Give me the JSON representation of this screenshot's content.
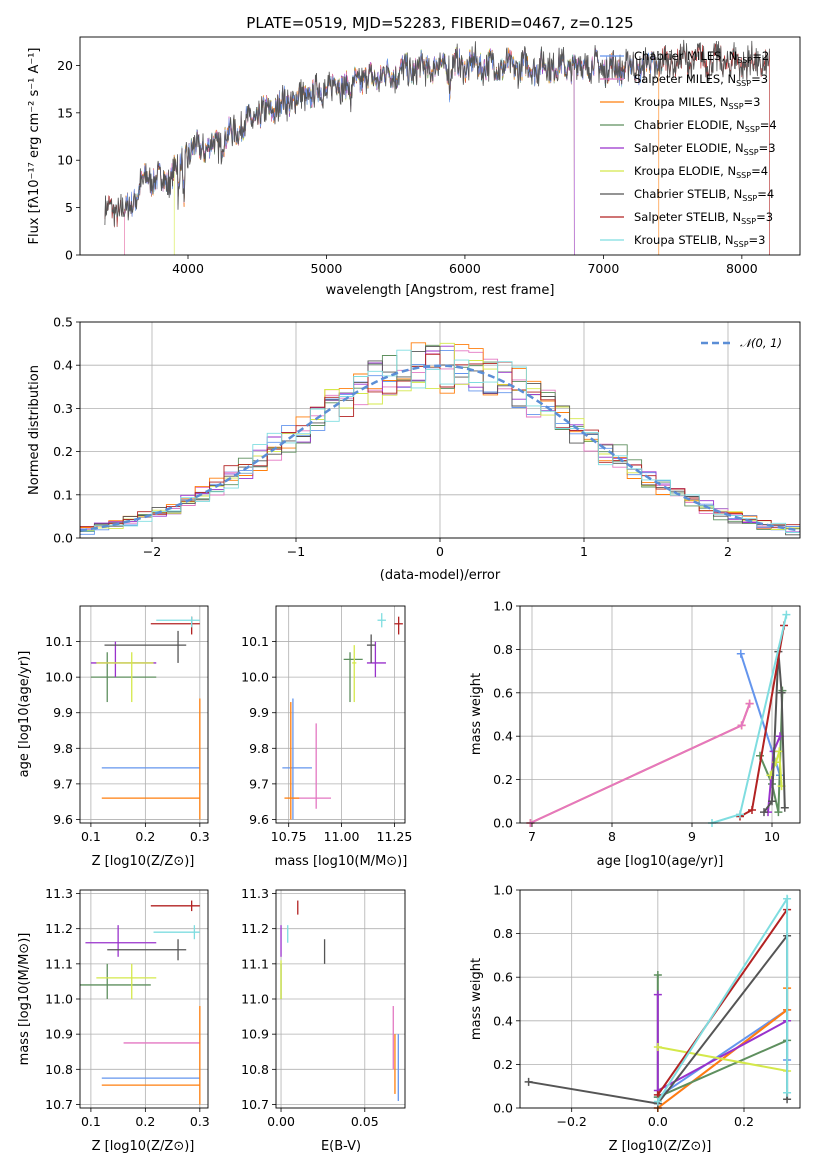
{
  "chart_data": [
    {
      "id": "spectrum",
      "type": "line",
      "title": "PLATE=0519, MJD=52283, FIBERID=0467, z=0.125",
      "xlabel": "wavelength [Angstrom, rest frame]",
      "ylabel": "Flux [fλ10⁻¹⁷ erg cm⁻² s⁻¹ A⁻¹]",
      "xlim": [
        3220,
        8420
      ],
      "ylim": [
        0,
        23
      ],
      "xticks": [
        4000,
        5000,
        6000,
        7000,
        8000
      ],
      "yticks": [
        0,
        5,
        10,
        15,
        20
      ],
      "grid": false,
      "legend_position": "top-right",
      "continuum": {
        "x": [
          3400,
          3550,
          3700,
          3850,
          3950,
          4050,
          4200,
          4350,
          4500,
          4700,
          4900,
          5100,
          5300,
          5500,
          5700,
          5900,
          6100,
          6300,
          6500,
          6700,
          6900,
          7100,
          7300,
          7500,
          7700,
          7900,
          8100,
          8200
        ],
        "y": [
          4.8,
          4.6,
          8.2,
          7.8,
          10.2,
          11.2,
          11.6,
          13.2,
          14.6,
          16.1,
          17.0,
          18.1,
          18.6,
          19.3,
          19.7,
          20.0,
          20.1,
          19.8,
          19.8,
          19.9,
          20.0,
          19.7,
          19.9,
          20.4,
          20.6,
          20.3,
          20.2,
          20.0
        ]
      },
      "series": [
        {
          "name": "Chabrier MILES, N_SSP=2",
          "legend": "Chabrier MILES, N",
          "legend_sub": "SSP",
          "legend_tail": "=2",
          "color": "#6495ed"
        },
        {
          "name": "Salpeter MILES, N_SSP=3",
          "legend": "Salpeter MILES, N",
          "legend_sub": "SSP",
          "legend_tail": "=3",
          "color": "#e377c2"
        },
        {
          "name": "Kroupa MILES, N_SSP=3",
          "legend": "Kroupa MILES, N",
          "legend_sub": "SSP",
          "legend_tail": "=3",
          "color": "#ff7f0e"
        },
        {
          "name": "Chabrier ELODIE, N_SSP=4",
          "legend": "Chabrier ELODIE, N",
          "legend_sub": "SSP",
          "legend_tail": "=4",
          "color": "#5e8f5e"
        },
        {
          "name": "Salpeter ELODIE, N_SSP=3",
          "legend": "Salpeter ELODIE, N",
          "legend_sub": "SSP",
          "legend_tail": "=3",
          "color": "#9932cc"
        },
        {
          "name": "Kroupa ELODIE, N_SSP=4",
          "legend": "Kroupa ELODIE, N",
          "legend_sub": "SSP",
          "legend_tail": "=4",
          "color": "#d4e84a"
        },
        {
          "name": "Chabrier STELIB, N_SSP=4",
          "legend": "Chabrier STELIB, N",
          "legend_sub": "SSP",
          "legend_tail": "=4",
          "color": "#555555"
        },
        {
          "name": "Salpeter STELIB, N_SSP=3",
          "legend": "Salpeter STELIB, N",
          "legend_sub": "SSP",
          "legend_tail": "=3",
          "color": "#b22222"
        },
        {
          "name": "Kroupa STELIB, N_SSP=3",
          "legend": "Kroupa STELIB, N",
          "legend_sub": "SSP",
          "legend_tail": "=3",
          "color": "#7fdde0"
        }
      ]
    },
    {
      "id": "residuals",
      "type": "line",
      "xlabel": "(data-model)/error",
      "ylabel": "Normed distribution",
      "xlim": [
        -2.5,
        2.5
      ],
      "ylim": [
        0,
        0.5
      ],
      "xticks": [
        -2,
        -1,
        0,
        1,
        2
      ],
      "yticks": [
        0.0,
        0.1,
        0.2,
        0.3,
        0.4,
        0.5
      ],
      "grid": true,
      "legend_position": "top-right",
      "legend_label": "𝒩(0, 1)",
      "gaussian_color": "#5b8ed6",
      "bin_width": 0.1
    },
    {
      "id": "age-vs-Z",
      "type": "scatter",
      "xlabel": "Z [log10(Z/Z⊙)]",
      "ylabel": "age  [log10(age/yr)]",
      "xlim": [
        0.08,
        0.315
      ],
      "ylim": [
        9.59,
        10.2
      ],
      "xticks": [
        0.1,
        0.2,
        0.3
      ],
      "yticks": [
        9.6,
        9.7,
        9.8,
        9.9,
        10.0,
        10.1
      ],
      "points": [
        {
          "model": "Chabrier MILES",
          "x": 0.3,
          "xlo": 0.12,
          "xhi": 0.3,
          "y": 9.745,
          "ylo": 9.745,
          "yhi": 9.745
        },
        {
          "model": "Salpeter MILES",
          "x": 0.3,
          "xlo": 0.3,
          "xhi": 0.3,
          "y": 9.66,
          "ylo": 9.66,
          "yhi": 9.66
        },
        {
          "model": "Kroupa MILES",
          "x": 0.3,
          "xlo": 0.12,
          "xhi": 0.3,
          "y": 9.66,
          "ylo": 9.6,
          "yhi": 9.94
        },
        {
          "model": "Chabrier ELODIE",
          "x": 0.13,
          "xlo": 0.1,
          "xhi": 0.22,
          "y": 10.0,
          "ylo": 9.93,
          "yhi": 10.07
        },
        {
          "model": "Salpeter ELODIE",
          "x": 0.145,
          "xlo": 0.1,
          "xhi": 0.22,
          "y": 10.04,
          "ylo": 10.0,
          "yhi": 10.1
        },
        {
          "model": "Kroupa ELODIE",
          "x": 0.175,
          "xlo": 0.11,
          "xhi": 0.215,
          "y": 10.04,
          "ylo": 9.93,
          "yhi": 10.07
        },
        {
          "model": "Chabrier STELIB",
          "x": 0.26,
          "xlo": 0.125,
          "xhi": 0.275,
          "y": 10.09,
          "ylo": 10.04,
          "yhi": 10.13
        },
        {
          "model": "Salpeter STELIB",
          "x": 0.285,
          "xlo": 0.21,
          "xhi": 0.3,
          "y": 10.15,
          "ylo": 10.12,
          "yhi": 10.17
        },
        {
          "model": "Kroupa STELIB",
          "x": 0.285,
          "xlo": 0.22,
          "xhi": 0.3,
          "y": 10.16,
          "ylo": 10.14,
          "yhi": 10.17
        }
      ]
    },
    {
      "id": "age-vs-mass",
      "type": "scatter",
      "xlabel": "mass [log10(M/M⊙)]",
      "ylabel": "",
      "xlim": [
        10.69,
        11.3
      ],
      "ylim": [
        9.59,
        10.2
      ],
      "xticks": [
        10.75,
        11.0,
        11.25
      ],
      "yticks": [
        9.6,
        9.7,
        9.8,
        9.9,
        10.0,
        10.1
      ],
      "points": [
        {
          "model": "Chabrier MILES",
          "x": 10.77,
          "xlo": 10.72,
          "xhi": 10.86,
          "y": 9.745,
          "ylo": 9.6,
          "yhi": 9.94
        },
        {
          "model": "Salpeter MILES",
          "x": 10.88,
          "xlo": 10.77,
          "xhi": 10.95,
          "y": 9.66,
          "ylo": 9.63,
          "yhi": 9.87
        },
        {
          "model": "Kroupa MILES",
          "x": 10.76,
          "xlo": 10.73,
          "xhi": 10.8,
          "y": 9.66,
          "ylo": 9.6,
          "yhi": 9.93
        },
        {
          "model": "Chabrier ELODIE",
          "x": 11.04,
          "xlo": 11.01,
          "xhi": 11.1,
          "y": 10.05,
          "ylo": 9.93,
          "yhi": 10.07
        },
        {
          "model": "Salpeter ELODIE",
          "x": 11.16,
          "xlo": 11.12,
          "xhi": 11.21,
          "y": 10.04,
          "ylo": 10.0,
          "yhi": 10.1
        },
        {
          "model": "Kroupa ELODIE",
          "x": 11.06,
          "xlo": 11.05,
          "xhi": 11.07,
          "y": 10.04,
          "ylo": 9.93,
          "yhi": 10.09
        },
        {
          "model": "Chabrier STELIB",
          "x": 11.14,
          "xlo": 11.12,
          "xhi": 11.16,
          "y": 10.09,
          "ylo": 10.04,
          "yhi": 10.12
        },
        {
          "model": "Salpeter STELIB",
          "x": 11.27,
          "xlo": 11.25,
          "xhi": 11.29,
          "y": 10.15,
          "ylo": 10.12,
          "yhi": 10.17
        },
        {
          "model": "Kroupa STELIB",
          "x": 11.19,
          "xlo": 11.17,
          "xhi": 11.21,
          "y": 10.16,
          "ylo": 10.14,
          "yhi": 10.18
        }
      ]
    },
    {
      "id": "massweight-vs-age",
      "type": "line",
      "xlabel": "age  [log10(age/yr)]",
      "ylabel": "mass weight",
      "xlim": [
        6.85,
        10.35
      ],
      "ylim": [
        0,
        1
      ],
      "xticks": [
        7,
        8,
        9,
        10
      ],
      "yticks": [
        0.0,
        0.2,
        0.4,
        0.6,
        0.8,
        1.0
      ],
      "grid": true,
      "series": [
        {
          "model": "Chabrier MILES",
          "x": [
            9.61,
            10.1
          ],
          "y": [
            0.78,
            0.22
          ]
        },
        {
          "model": "Kroupa MILES",
          "x": [
            6.98,
            9.62,
            9.72
          ],
          "y": [
            0.0,
            0.45,
            0.55
          ]
        },
        {
          "model": "Salpeter MILES",
          "x": [
            6.98,
            9.62,
            9.72
          ],
          "y": [
            0.0,
            0.45,
            0.55
          ]
        },
        {
          "model": "Chabrier ELODIE",
          "x": [
            9.85,
            10.0,
            10.08,
            10.13
          ],
          "y": [
            0.31,
            0.18,
            0.05,
            0.61
          ]
        },
        {
          "model": "Salpeter ELODIE",
          "x": [
            9.95,
            10.02,
            10.1
          ],
          "y": [
            0.05,
            0.33,
            0.4
          ]
        },
        {
          "model": "Kroupa ELODIE",
          "x": [
            9.98,
            10.05,
            10.09,
            10.12
          ],
          "y": [
            0.22,
            0.28,
            0.33,
            0.17
          ]
        },
        {
          "model": "Chabrier STELIB",
          "x": [
            9.9,
            10.0,
            10.08,
            10.12,
            10.16
          ],
          "y": [
            0.05,
            0.1,
            0.79,
            0.6,
            0.07
          ]
        },
        {
          "model": "Salpeter STELIB",
          "x": [
            9.6,
            9.75,
            10.15
          ],
          "y": [
            0.03,
            0.06,
            0.91
          ]
        },
        {
          "model": "Kroupa STELIB",
          "x": [
            9.25,
            9.6,
            10.18
          ],
          "y": [
            0.0,
            0.04,
            0.96
          ]
        }
      ]
    },
    {
      "id": "mass-vs-Z",
      "type": "scatter",
      "xlabel": "Z [log10(Z/Z⊙)]",
      "ylabel": "mass [log10(M/M⊙)]",
      "xlim": [
        0.08,
        0.315
      ],
      "ylim": [
        10.69,
        11.31
      ],
      "xticks": [
        0.1,
        0.2,
        0.3
      ],
      "yticks": [
        10.7,
        10.8,
        10.9,
        11.0,
        11.1,
        11.2,
        11.3
      ],
      "points": [
        {
          "model": "Chabrier MILES",
          "x": 0.3,
          "xlo": 0.12,
          "xhi": 0.3,
          "y": 10.775,
          "ylo": 10.775,
          "yhi": 10.775
        },
        {
          "model": "Salpeter MILES",
          "x": 0.3,
          "xlo": 0.16,
          "xhi": 0.3,
          "y": 10.875,
          "ylo": 10.875,
          "yhi": 10.875
        },
        {
          "model": "Kroupa MILES",
          "x": 0.3,
          "xlo": 0.12,
          "xhi": 0.3,
          "y": 10.755,
          "ylo": 10.7,
          "yhi": 10.98
        },
        {
          "model": "Chabrier ELODIE",
          "x": 0.13,
          "xlo": 0.08,
          "xhi": 0.21,
          "y": 11.04,
          "ylo": 11.0,
          "yhi": 11.1
        },
        {
          "model": "Salpeter ELODIE",
          "x": 0.15,
          "xlo": 0.09,
          "xhi": 0.22,
          "y": 11.16,
          "ylo": 11.12,
          "yhi": 11.21
        },
        {
          "model": "Kroupa ELODIE",
          "x": 0.175,
          "xlo": 0.11,
          "xhi": 0.22,
          "y": 11.06,
          "ylo": 11.0,
          "yhi": 11.1
        },
        {
          "model": "Chabrier STELIB",
          "x": 0.26,
          "xlo": 0.13,
          "xhi": 0.275,
          "y": 11.14,
          "ylo": 11.11,
          "yhi": 11.17
        },
        {
          "model": "Salpeter STELIB",
          "x": 0.285,
          "xlo": 0.21,
          "xhi": 0.3,
          "y": 11.265,
          "ylo": 11.25,
          "yhi": 11.28
        },
        {
          "model": "Kroupa STELIB",
          "x": 0.29,
          "xlo": 0.215,
          "xhi": 0.3,
          "y": 11.19,
          "ylo": 11.17,
          "yhi": 11.21
        }
      ]
    },
    {
      "id": "mass-vs-ebv",
      "type": "scatter",
      "xlabel": "E(B-V)",
      "ylabel": "",
      "xlim": [
        -0.003,
        0.074
      ],
      "ylim": [
        10.69,
        11.31
      ],
      "xticks": [
        0.0,
        0.05
      ],
      "yticks": [
        10.7,
        10.8,
        10.9,
        11.0,
        11.1,
        11.2,
        11.3
      ],
      "points": [
        {
          "model": "Chabrier MILES",
          "x": 0.07,
          "xlo": 0.07,
          "xhi": 0.07,
          "y": 10.8,
          "ylo": 10.71,
          "yhi": 10.9
        },
        {
          "model": "Salpeter MILES",
          "x": 0.067,
          "xlo": 0.067,
          "xhi": 0.067,
          "y": 10.88,
          "ylo": 10.8,
          "yhi": 10.98
        },
        {
          "model": "Kroupa MILES",
          "x": 0.068,
          "xlo": 0.068,
          "xhi": 0.068,
          "y": 10.82,
          "ylo": 10.73,
          "yhi": 10.9
        },
        {
          "model": "Chabrier ELODIE",
          "x": 0.0,
          "xlo": 0.0,
          "xhi": 0.0,
          "y": 11.04,
          "ylo": 11.0,
          "yhi": 11.1
        },
        {
          "model": "Salpeter ELODIE",
          "x": 0.0,
          "xlo": 0.0,
          "xhi": 0.0,
          "y": 11.16,
          "ylo": 11.12,
          "yhi": 11.21
        },
        {
          "model": "Kroupa ELODIE",
          "x": 0.0,
          "xlo": 0.0,
          "xhi": 0.0,
          "y": 11.06,
          "ylo": 11.0,
          "yhi": 11.11
        },
        {
          "model": "Chabrier STELIB",
          "x": 0.026,
          "xlo": 0.026,
          "xhi": 0.026,
          "y": 11.14,
          "ylo": 11.1,
          "yhi": 11.17
        },
        {
          "model": "Salpeter STELIB",
          "x": 0.01,
          "xlo": 0.01,
          "xhi": 0.01,
          "y": 11.265,
          "ylo": 11.24,
          "yhi": 11.28
        },
        {
          "model": "Kroupa STELIB",
          "x": 0.004,
          "xlo": 0.004,
          "xhi": 0.004,
          "y": 11.19,
          "ylo": 11.16,
          "yhi": 11.21
        }
      ]
    },
    {
      "id": "massweight-vs-Z",
      "type": "line",
      "xlabel": "Z [log10(Z/Z⊙)]",
      "ylabel": "mass weight",
      "xlim": [
        -0.32,
        0.33
      ],
      "ylim": [
        0,
        1
      ],
      "xticks": [
        -0.2,
        0.0,
        0.2
      ],
      "yticks": [
        0.0,
        0.2,
        0.4,
        0.6,
        0.8,
        1.0
      ],
      "grid": true,
      "series": [
        {
          "model": "Chabrier MILES",
          "x": [
            0.0,
            0.3,
            0.3
          ],
          "y": [
            0.05,
            0.45,
            0.22
          ]
        },
        {
          "model": "Salpeter MILES",
          "x": [
            0.0,
            0.3
          ],
          "y": [
            0.0,
            0.45
          ]
        },
        {
          "model": "Kroupa MILES",
          "x": [
            0.0,
            0.3,
            0.3
          ],
          "y": [
            0.0,
            0.45,
            0.55
          ]
        },
        {
          "model": "Chabrier ELODIE",
          "x": [
            0.0,
            0.0,
            0.3
          ],
          "y": [
            0.61,
            0.05,
            0.31
          ]
        },
        {
          "model": "Salpeter ELODIE",
          "x": [
            0.0,
            0.0,
            0.3
          ],
          "y": [
            0.52,
            0.08,
            0.4
          ]
        },
        {
          "model": "Kroupa ELODIE",
          "x": [
            0.0,
            0.3
          ],
          "y": [
            0.28,
            0.17
          ]
        },
        {
          "model": "Chabrier STELIB",
          "x": [
            -0.3,
            0.0,
            0.3,
            0.3
          ],
          "y": [
            0.12,
            0.02,
            0.79,
            0.04
          ]
        },
        {
          "model": "Salpeter STELIB",
          "x": [
            0.0,
            0.3
          ],
          "y": [
            0.06,
            0.91
          ]
        },
        {
          "model": "Kroupa STELIB",
          "x": [
            0.0,
            0.3,
            0.3
          ],
          "y": [
            0.03,
            0.96,
            0.07
          ]
        }
      ]
    }
  ]
}
